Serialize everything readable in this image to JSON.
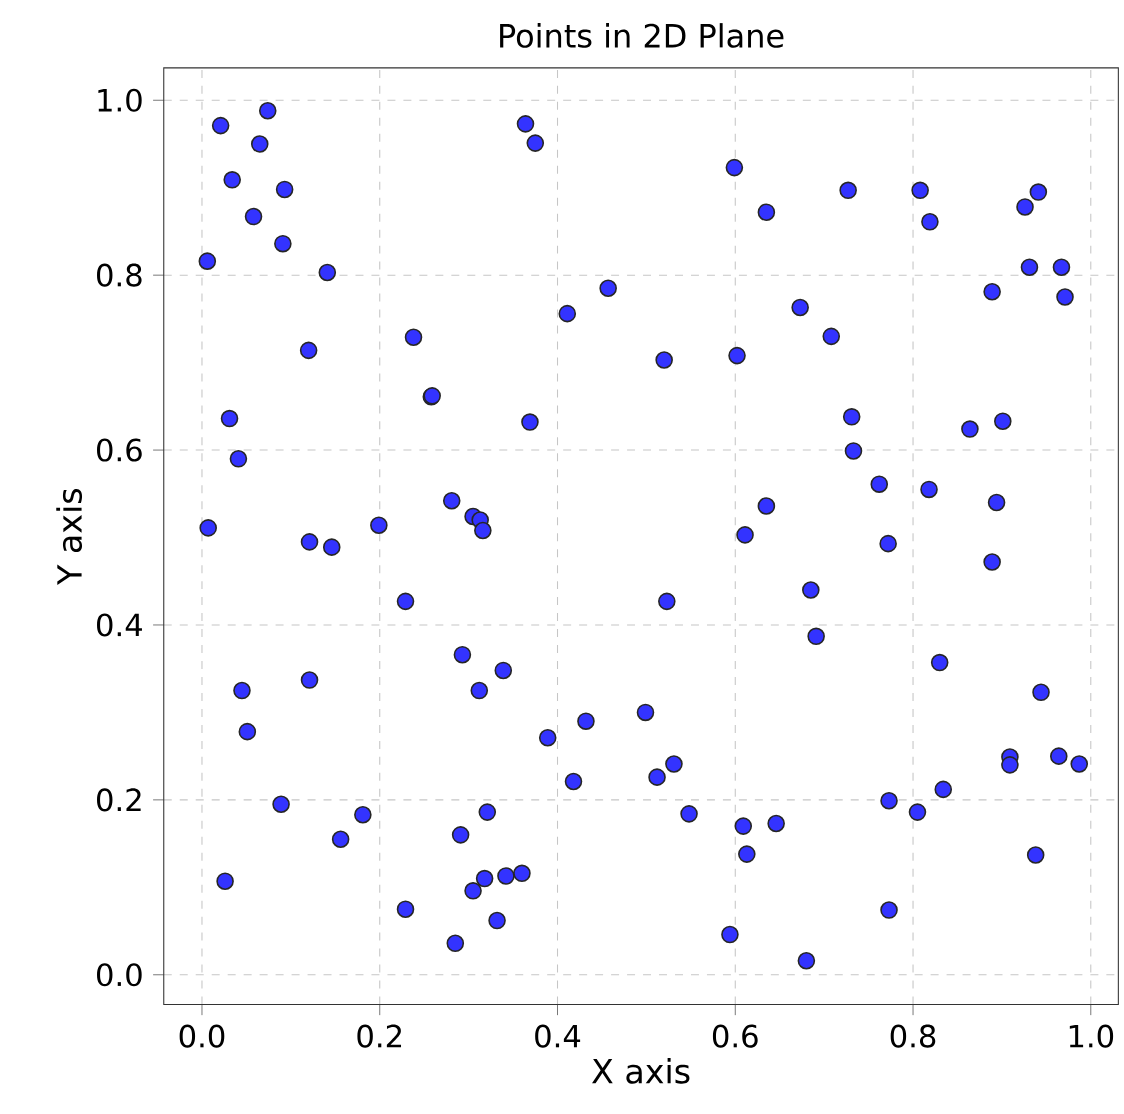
{
  "chart_data": {
    "type": "scatter",
    "title": "Points in 2D Plane",
    "xlabel": "X axis",
    "ylabel": "Y axis",
    "xlim": [
      -0.043,
      1.031
    ],
    "ylim": [
      -0.034,
      1.037
    ],
    "xticks": [
      {
        "value": 0,
        "label": "0.0"
      },
      {
        "value": 0.2,
        "label": "0.2"
      },
      {
        "value": 0.4,
        "label": "0.4"
      },
      {
        "value": 0.6,
        "label": "0.6"
      },
      {
        "value": 0.8,
        "label": "0.8"
      },
      {
        "value": 1,
        "label": "1.0"
      }
    ],
    "yticks": [
      {
        "value": 0,
        "label": "0.0"
      },
      {
        "value": 0.2,
        "label": "0.2"
      },
      {
        "value": 0.4,
        "label": "0.4"
      },
      {
        "value": 0.6,
        "label": "0.6"
      },
      {
        "value": 0.8,
        "label": "0.8"
      },
      {
        "value": 1,
        "label": "1.0"
      }
    ],
    "grid": true,
    "series": [
      {
        "color": "#3333ff",
        "x": [
          0.021,
          0.074,
          0.065,
          0.034,
          0.093,
          0.058,
          0.091,
          0.006,
          0.141,
          0.364,
          0.375,
          0.457,
          0.411,
          0.238,
          0.12,
          0.258,
          0.259,
          0.369,
          0.031,
          0.041,
          0.281,
          0.305,
          0.313,
          0.316,
          0.199,
          0.007,
          0.121,
          0.146,
          0.229,
          0.293,
          0.339,
          0.312,
          0.045,
          0.121,
          0.051,
          0.389,
          0.432,
          0.418,
          0.089,
          0.181,
          0.156,
          0.321,
          0.291,
          0.026,
          0.318,
          0.342,
          0.36,
          0.305,
          0.229,
          0.332,
          0.285,
          0.599,
          0.635,
          0.727,
          0.808,
          0.819,
          0.941,
          0.926,
          0.931,
          0.967,
          0.971,
          0.889,
          0.673,
          0.708,
          0.52,
          0.602,
          0.731,
          0.733,
          0.864,
          0.901,
          0.762,
          0.818,
          0.894,
          0.635,
          0.611,
          0.772,
          0.889,
          0.523,
          0.685,
          0.691,
          0.83,
          0.944,
          0.499,
          0.531,
          0.512,
          0.548,
          0.609,
          0.646,
          0.613,
          0.773,
          0.805,
          0.834,
          0.909,
          0.909,
          0.964,
          0.987,
          0.938,
          0.773,
          0.594,
          0.68
        ],
        "values": [
          0.971,
          0.988,
          0.95,
          0.909,
          0.898,
          0.867,
          0.836,
          0.816,
          0.803,
          0.973,
          0.951,
          0.785,
          0.756,
          0.729,
          0.714,
          0.661,
          0.662,
          0.632,
          0.636,
          0.59,
          0.542,
          0.524,
          0.52,
          0.508,
          0.514,
          0.511,
          0.495,
          0.489,
          0.427,
          0.366,
          0.348,
          0.325,
          0.325,
          0.337,
          0.278,
          0.271,
          0.29,
          0.221,
          0.195,
          0.183,
          0.155,
          0.186,
          0.16,
          0.107,
          0.11,
          0.113,
          0.116,
          0.096,
          0.075,
          0.062,
          0.036,
          0.923,
          0.872,
          0.897,
          0.897,
          0.861,
          0.895,
          0.878,
          0.809,
          0.809,
          0.775,
          0.781,
          0.763,
          0.73,
          0.703,
          0.708,
          0.638,
          0.599,
          0.624,
          0.633,
          0.561,
          0.555,
          0.54,
          0.536,
          0.503,
          0.493,
          0.472,
          0.427,
          0.44,
          0.387,
          0.357,
          0.323,
          0.3,
          0.241,
          0.226,
          0.184,
          0.17,
          0.173,
          0.138,
          0.199,
          0.186,
          0.212,
          0.249,
          0.24,
          0.25,
          0.241,
          0.137,
          0.074,
          0.046,
          0.016
        ]
      }
    ]
  }
}
